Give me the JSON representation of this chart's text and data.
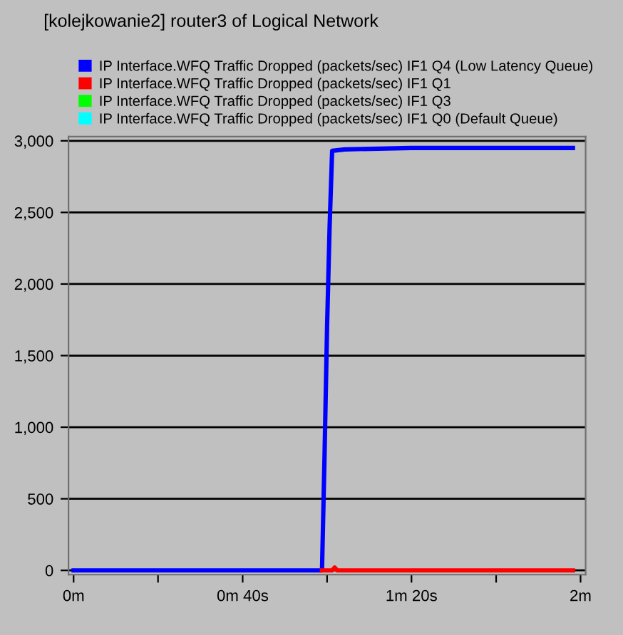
{
  "chart_data": {
    "type": "line",
    "title": "[kolejkowanie2] router3 of Logical Network",
    "series": [
      {
        "name": "IP Interface.WFQ Traffic Dropped (packets/sec) IF1 Q4 (Low Latency Queue)",
        "color": "#0000ff",
        "x": [
          0,
          0.98,
          0.99,
          1.0,
          1.01,
          1.02,
          1.07,
          1.33,
          1.67,
          1.97
        ],
        "values": [
          0,
          0,
          800,
          1700,
          2400,
          2930,
          2940,
          2950,
          2950,
          2950
        ]
      },
      {
        "name": "IP Interface.WFQ Traffic Dropped (packets/sec) IF1 Q1",
        "color": "#ff0000",
        "x": [
          0.98,
          1.02,
          1.03,
          1.04,
          1.97
        ],
        "values": [
          0,
          0,
          20,
          0,
          0
        ]
      },
      {
        "name": "IP Interface.WFQ Traffic Dropped (packets/sec) IF1 Q3",
        "color": "#00ff00"
      },
      {
        "name": "IP Interface.WFQ Traffic Dropped (packets/sec) IF1 Q0 (Default Queue)",
        "color": "#00ffff"
      }
    ],
    "xlim": [
      -0.02,
      2.02
    ],
    "ylim": [
      -30,
      3030
    ],
    "xticks": [
      {
        "value": 0,
        "label": "0m"
      },
      {
        "value": 0.333,
        "label": null
      },
      {
        "value": 0.667,
        "label": "0m 40s"
      },
      {
        "value": 1,
        "label": null
      },
      {
        "value": 1.333,
        "label": "1m 20s"
      },
      {
        "value": 1.667,
        "label": null
      },
      {
        "value": 2,
        "label": "2m"
      }
    ],
    "yticks": [
      {
        "value": 0,
        "label": "0"
      },
      {
        "value": 500,
        "label": "500"
      },
      {
        "value": 1000,
        "label": "1,000"
      },
      {
        "value": 1500,
        "label": "1,500"
      },
      {
        "value": 2000,
        "label": "2,000"
      },
      {
        "value": 2500,
        "label": "2,500"
      },
      {
        "value": 3000,
        "label": "3,000"
      }
    ],
    "grid": "y",
    "legend": "top",
    "line_style": "solid",
    "marker": "none"
  }
}
